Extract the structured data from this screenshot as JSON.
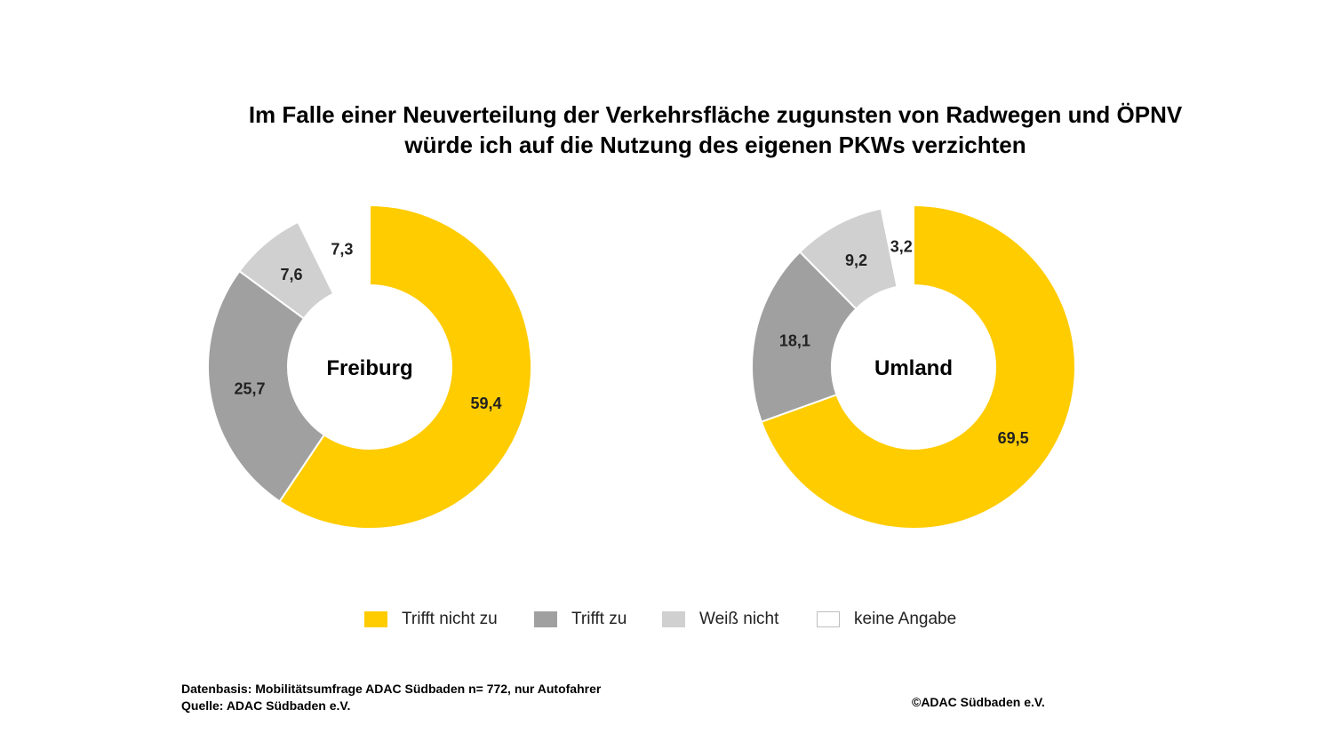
{
  "title": {
    "line1": "Im Falle einer Neuverteilung der Verkehrsfläche zugunsten von Radwegen und ÖPNV",
    "line2": "würde ich auf die Nutzung des eigenen PKWs verzichten"
  },
  "legend": [
    {
      "label": "Trifft nicht zu",
      "color": "#FFCC00"
    },
    {
      "label": "Trifft zu",
      "color": "#A0A0A0"
    },
    {
      "label": "Weiß nicht",
      "color": "#D0D0D0"
    },
    {
      "label": "keine Angabe",
      "color": "#FFFFFF"
    }
  ],
  "chart_data": [
    {
      "type": "pie",
      "center_label": "Freiburg",
      "categories": [
        "Trifft nicht zu",
        "Trifft zu",
        "Weiß nicht",
        "keine Angabe"
      ],
      "values": [
        59.4,
        25.7,
        7.6,
        7.3
      ],
      "value_labels": [
        "59,4",
        "25,7",
        "7,6",
        "7,3"
      ]
    },
    {
      "type": "pie",
      "center_label": "Umland",
      "categories": [
        "Trifft nicht zu",
        "Trifft zu",
        "Weiß nicht",
        "keine Angabe"
      ],
      "values": [
        69.5,
        18.1,
        9.2,
        3.2
      ],
      "value_labels": [
        "69,5",
        "18,1",
        "9,2",
        "3,2"
      ]
    }
  ],
  "footer": {
    "datenbasis": "Datenbasis: Mobilitätsumfrage ADAC Südbaden n= 772,  nur Autofahrer",
    "quelle": "Quelle: ADAC Südbaden e.V.",
    "copyright": "©ADAC Südbaden e.V."
  }
}
